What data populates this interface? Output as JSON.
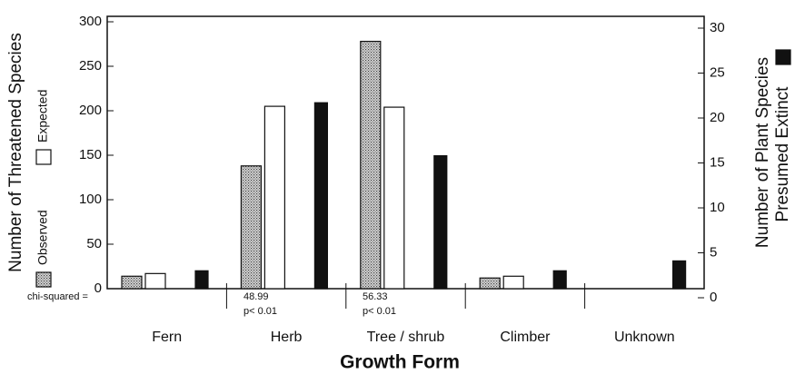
{
  "chart_data": {
    "type": "bar",
    "ylabel": "Number of Threatened Species",
    "y2label": [
      "Number of Plant Species",
      "Presumed Extinct"
    ],
    "xlabel": "Growth Form",
    "categories": [
      "Fern",
      "Herb",
      "Tree / shrub",
      "Climber",
      "Unknown"
    ],
    "series": [
      {
        "name": "Observed",
        "color": "#b8b8b8",
        "fill_pattern": "dots",
        "values": [
          14,
          138,
          278,
          12,
          null
        ]
      },
      {
        "name": "Expected",
        "color": "#ffffff",
        "values": [
          17,
          205,
          204,
          14,
          null
        ]
      },
      {
        "name": "Presumed Extinct",
        "color": "#111111",
        "axis": "y2",
        "values": [
          3.0,
          21.7,
          15.8,
          3.0,
          4.1
        ]
      }
    ],
    "ylim": [
      0,
      300
    ],
    "yticks": [
      0,
      50,
      100,
      150,
      200,
      250,
      300
    ],
    "y2lim": [
      0,
      30
    ],
    "y2ticks": [
      0,
      5,
      10,
      15,
      20,
      25,
      30
    ],
    "annotations": [
      "chi-squared =",
      "48.99",
      "p< 0.01",
      "56.33",
      "p< 0.01"
    ]
  }
}
